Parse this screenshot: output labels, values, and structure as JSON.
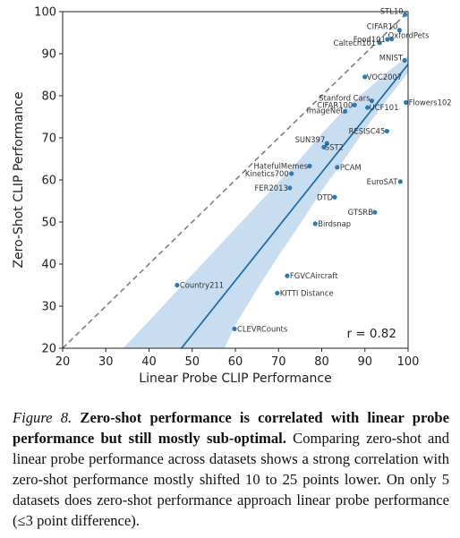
{
  "chart_data": {
    "type": "scatter",
    "xlabel": "Linear Probe CLIP Performance",
    "ylabel": "Zero-Shot CLIP Performance",
    "xlim": [
      20,
      100
    ],
    "ylim": [
      20,
      100
    ],
    "xticks": [
      "20",
      "30",
      "40",
      "50",
      "60",
      "70",
      "80",
      "90",
      "100"
    ],
    "yticks": [
      "20",
      "30",
      "40",
      "50",
      "60",
      "70",
      "80",
      "90",
      "100"
    ],
    "grid": false,
    "points": [
      {
        "label": "STL10",
        "x": 99.3,
        "y": 99.3
      },
      {
        "label": "CIFAR10",
        "x": 98.0,
        "y": 95.6
      },
      {
        "label": "Food101",
        "x": 95.2,
        "y": 93.4
      },
      {
        "label": "OxfordPets",
        "x": 96.2,
        "y": 93.5
      },
      {
        "label": "Caltech101",
        "x": 93.4,
        "y": 92.6
      },
      {
        "label": "MNIST",
        "x": 99.2,
        "y": 88.4
      },
      {
        "label": "VOC2007",
        "x": 90.0,
        "y": 84.5
      },
      {
        "label": "Stanford Cars",
        "x": 91.6,
        "y": 78.8
      },
      {
        "label": "CIFAR100",
        "x": 87.6,
        "y": 77.8
      },
      {
        "label": "ImageNet",
        "x": 85.4,
        "y": 76.3
      },
      {
        "label": "UCF101",
        "x": 90.6,
        "y": 77.2
      },
      {
        "label": "Flowers102",
        "x": 99.5,
        "y": 78.4
      },
      {
        "label": "RESISC45",
        "x": 95.1,
        "y": 71.6
      },
      {
        "label": "SUN397",
        "x": 81.2,
        "y": 68.7
      },
      {
        "label": "SST2",
        "x": 80.5,
        "y": 67.8
      },
      {
        "label": "HatefulMemes",
        "x": 77.2,
        "y": 63.3
      },
      {
        "label": "PCAM",
        "x": 83.6,
        "y": 63.0
      },
      {
        "label": "Kinetics700",
        "x": 73.0,
        "y": 61.5
      },
      {
        "label": "EuroSAT",
        "x": 98.2,
        "y": 59.6
      },
      {
        "label": "FER2013",
        "x": 72.6,
        "y": 58.1
      },
      {
        "label": "DTD",
        "x": 83.0,
        "y": 55.9
      },
      {
        "label": "GTSRB",
        "x": 92.3,
        "y": 52.3
      },
      {
        "label": "Birdsnap",
        "x": 78.5,
        "y": 49.6
      },
      {
        "label": "FGVCAircraft",
        "x": 72.0,
        "y": 37.2
      },
      {
        "label": "Country211",
        "x": 46.5,
        "y": 35.0
      },
      {
        "label": "KITTI Distance",
        "x": 69.7,
        "y": 33.1
      },
      {
        "label": "CLEVRCounts",
        "x": 59.8,
        "y": 24.6
      }
    ],
    "fit_line": {
      "x": [
        47.5,
        100
      ],
      "y": [
        20,
        87.5
      ]
    },
    "confidence_band": {
      "upper": [
        [
          34,
          20
        ],
        [
          40,
          26.5
        ],
        [
          50,
          37.5
        ],
        [
          60,
          48.5
        ],
        [
          65,
          54
        ],
        [
          70,
          59.5
        ],
        [
          75,
          65
        ],
        [
          80,
          71
        ],
        [
          85,
          76.5
        ],
        [
          90,
          81
        ],
        [
          95,
          85.5
        ],
        [
          100,
          89.5
        ]
      ],
      "lower": [
        [
          100,
          85.5
        ],
        [
          95,
          79
        ],
        [
          90,
          72
        ],
        [
          85,
          64.5
        ],
        [
          80,
          57.5
        ],
        [
          75,
          49.5
        ],
        [
          70,
          42
        ],
        [
          65,
          34
        ],
        [
          60,
          25.5
        ],
        [
          57.5,
          20
        ]
      ]
    },
    "diagonal": {
      "x": [
        20,
        100
      ],
      "y": [
        20,
        100
      ],
      "style": "dashed"
    },
    "annotation": "r = 0.82",
    "colors": {
      "points": "#2b7bb9",
      "fit_line": "#1f6fad",
      "band": "#c8ddf0",
      "diagonal": "#7f7f7f"
    }
  },
  "caption": {
    "label": "Figure 8.",
    "title": "Zero-shot performance is correlated with linear probe performance but still mostly sub-optimal.",
    "body": "Comparing zero-shot and linear probe performance across datasets shows a strong correlation with zero-shot performance mostly shifted 10 to 25 points lower. On only 5 datasets does zero-shot performance approach linear probe performance (≤3 point difference)."
  }
}
